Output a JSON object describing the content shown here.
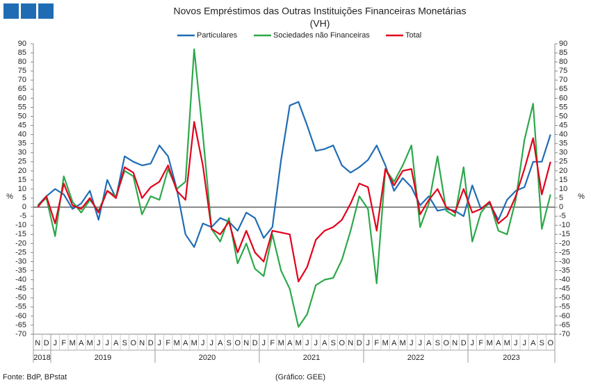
{
  "chart_data": {
    "type": "line",
    "title": "Novos Empréstimos das Outras Instituições Financeiras Monetárias",
    "subtitle": "(VH)",
    "y_label": "%",
    "y2_label": "%",
    "source": "Fonte: BdP, BPstat",
    "credit": "(Gráfico: GEE)",
    "legend": "top",
    "grid": false,
    "categories": [
      "N",
      "D",
      "J",
      "F",
      "M",
      "A",
      "M",
      "J",
      "J",
      "A",
      "S",
      "O",
      "N",
      "D",
      "J",
      "F",
      "M",
      "A",
      "M",
      "J",
      "J",
      "A",
      "S",
      "O",
      "N",
      "D",
      "J",
      "F",
      "M",
      "A",
      "M",
      "J",
      "J",
      "A",
      "S",
      "O",
      "N",
      "D",
      "J",
      "F",
      "M",
      "A",
      "M",
      "J",
      "J",
      "A",
      "S",
      "O",
      "N",
      "D",
      "J",
      "F",
      "M",
      "A",
      "M",
      "J",
      "J",
      "A",
      "S",
      "O"
    ],
    "category_years": [
      "2018",
      "2018",
      "2019",
      "2019",
      "2019",
      "2019",
      "2019",
      "2019",
      "2019",
      "2019",
      "2019",
      "2019",
      "2019",
      "2019",
      "2020",
      "2020",
      "2020",
      "2020",
      "2020",
      "2020",
      "2020",
      "2020",
      "2020",
      "2020",
      "2020",
      "2020",
      "2021",
      "2021",
      "2021",
      "2021",
      "2021",
      "2021",
      "2021",
      "2021",
      "2021",
      "2021",
      "2021",
      "2021",
      "2022",
      "2022",
      "2022",
      "2022",
      "2022",
      "2022",
      "2022",
      "2022",
      "2022",
      "2022",
      "2022",
      "2022",
      "2023",
      "2023",
      "2023",
      "2023",
      "2023",
      "2023",
      "2023",
      "2023",
      "2023",
      "2023"
    ],
    "ylim": [
      -70,
      90
    ],
    "yticks": [
      -70,
      -65,
      -60,
      -55,
      -50,
      -45,
      -40,
      -35,
      -30,
      -25,
      -20,
      -15,
      -10,
      -5,
      0,
      5,
      10,
      15,
      20,
      25,
      30,
      35,
      40,
      45,
      50,
      55,
      60,
      65,
      70,
      75,
      80,
      85,
      90
    ],
    "series": [
      {
        "name": "Particulares",
        "color": "#1f6cb4",
        "values": [
          1,
          6,
          10,
          7,
          -1,
          2,
          9,
          -7,
          15,
          5,
          28,
          25,
          23,
          24,
          34,
          28,
          10,
          -15,
          -22,
          -9,
          -11,
          -6,
          -8,
          -13,
          -3,
          -6,
          -17,
          -11,
          26,
          56,
          58,
          45,
          31,
          32,
          34,
          23,
          19,
          22,
          26,
          34,
          23,
          9,
          16,
          11,
          1,
          6,
          -2,
          -1,
          -2,
          -5,
          12,
          -1,
          2,
          -7,
          4,
          9,
          11,
          25,
          25,
          40
        ]
      },
      {
        "name": "Sociedades não Financeiras",
        "color": "#2ca84a",
        "values": [
          1,
          5,
          -16,
          17,
          3,
          -3,
          4,
          -2,
          9,
          6,
          20,
          17,
          -4,
          6,
          4,
          21,
          10,
          14,
          87,
          40,
          -12,
          -19,
          -6,
          -31,
          -20,
          -34,
          -38,
          -15,
          -35,
          -45,
          -66,
          -59,
          -43,
          -40,
          -39,
          -29,
          -13,
          6,
          -1,
          -42,
          21,
          14,
          23,
          34,
          -11,
          2,
          28,
          -2,
          -5,
          22,
          -19,
          -3,
          3,
          -13,
          -15,
          4,
          37,
          57,
          -12,
          7
        ]
      },
      {
        "name": "Total",
        "color": "#e2001a",
        "values": [
          0,
          6,
          -9,
          13,
          1,
          -1,
          5,
          -3,
          9,
          5,
          22,
          19,
          5,
          11,
          14,
          23,
          9,
          4,
          47,
          23,
          -12,
          -15,
          -8,
          -25,
          -13,
          -25,
          -30,
          -13,
          -14,
          -15,
          -41,
          -33,
          -18,
          -13,
          -11,
          -7,
          2,
          13,
          11,
          -13,
          21,
          12,
          20,
          21,
          -4,
          4,
          10,
          0,
          -3,
          10,
          -3,
          -1,
          3,
          -9,
          -5,
          6,
          21,
          38,
          7,
          25
        ]
      }
    ]
  }
}
